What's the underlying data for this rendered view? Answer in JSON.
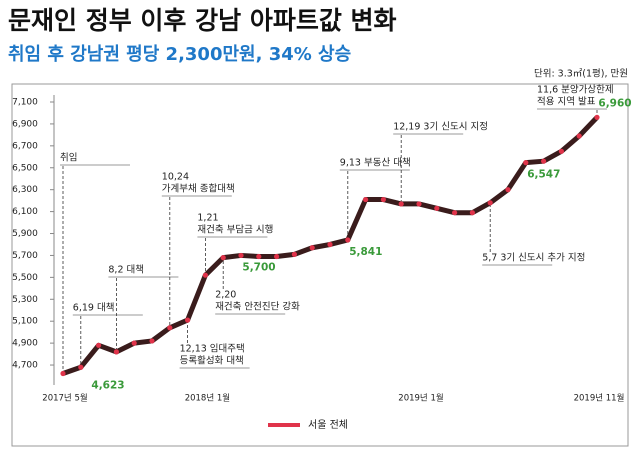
{
  "chart_data": {
    "type": "line",
    "title": "문재인 정부 이후 강남 아파트값 변화",
    "subtitle": "취임 후 강남권 평당 2,300만원, 34% 상승",
    "unit": "단위: 3.3㎡(1평), 만원",
    "categories": [
      "2017년 5월",
      null,
      null,
      null,
      null,
      null,
      null,
      null,
      "2018년 1월",
      null,
      null,
      null,
      null,
      null,
      null,
      null,
      null,
      null,
      null,
      null,
      "2019년 1월",
      null,
      null,
      null,
      null,
      null,
      null,
      null,
      null,
      null,
      "2019년 11월"
    ],
    "series": [
      {
        "name": "서울 전체",
        "color": "#e0334a",
        "line_color": "#3a1c1c",
        "values": [
          4623,
          4680,
          4880,
          4820,
          4900,
          4920,
          5040,
          5110,
          5520,
          5680,
          5700,
          5690,
          5690,
          5710,
          5770,
          5800,
          5841,
          6210,
          6210,
          6170,
          6170,
          6130,
          6090,
          6090,
          6180,
          6300,
          6547,
          6560,
          6650,
          6790,
          6960
        ],
        "value_labels": [
          "4,623",
          null,
          null,
          null,
          null,
          null,
          null,
          null,
          null,
          null,
          "5,700",
          null,
          null,
          null,
          null,
          null,
          "5,841",
          null,
          null,
          null,
          null,
          null,
          null,
          null,
          null,
          null,
          "6,547",
          null,
          null,
          null,
          "6,960"
        ]
      }
    ],
    "ylim": [
      4600,
      7100
    ],
    "yticks": [
      {
        "value": 4700,
        "label": "4,700"
      },
      {
        "value": 4900,
        "label": "4,900"
      },
      {
        "value": 5100,
        "label": "5,100"
      },
      {
        "value": 5300,
        "label": "5,300"
      },
      {
        "value": 5500,
        "label": "5,500"
      },
      {
        "value": 5700,
        "label": "5,700"
      },
      {
        "value": 5900,
        "label": "5,900"
      },
      {
        "value": 6100,
        "label": "6,100"
      },
      {
        "value": 6300,
        "label": "6,300"
      },
      {
        "value": 6500,
        "label": "6,500"
      },
      {
        "value": 6700,
        "label": "6,700"
      },
      {
        "value": 6900,
        "label": "6,900"
      },
      {
        "value": 7100,
        "label": "7,100"
      }
    ],
    "value_label_color": "#3a9a3a",
    "annotations": [
      [
        "취임"
      ],
      [
        "6,19 대책"
      ],
      [
        "8,2 대책"
      ],
      [
        "10,24",
        "가계부채 종합대책"
      ],
      [
        "12,13 임대주택",
        "등록활성화 대책"
      ],
      [
        "1,21",
        "재건축 부담금 시행"
      ],
      [
        "2,20",
        "재건축 안전진단 강화"
      ],
      [
        "9,13 부동산 대책"
      ],
      [
        "12,19 3기 신도시 지정"
      ],
      [
        "5,7 3기 신도시 추가 지정"
      ],
      [
        "11,6 분양가상한제",
        "적용 지역 발표"
      ]
    ]
  }
}
